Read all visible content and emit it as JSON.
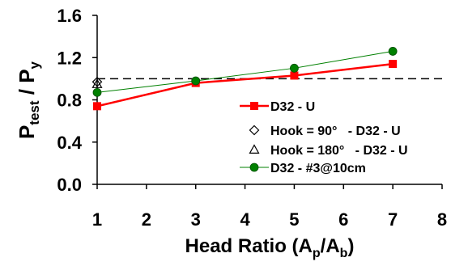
{
  "chart_data": {
    "type": "line",
    "xlabel": {
      "main": "Head Ratio (A",
      "sub1": "p",
      "mid": "/A",
      "sub2": "b",
      "end": ")"
    },
    "ylabel": {
      "main": "P",
      "sub1": "test",
      "mid": " / P",
      "sub2": "y"
    },
    "xlim": [
      1,
      8
    ],
    "ylim": [
      0,
      1.6
    ],
    "xticks": [
      1,
      2,
      3,
      4,
      5,
      6,
      7,
      8
    ],
    "xtick_labels": [
      "1",
      "2",
      "3",
      "4",
      "5",
      "6",
      "7",
      "8"
    ],
    "yticks": [
      0,
      0.4,
      0.8,
      1.2,
      1.6
    ],
    "ytick_labels": [
      "0.0",
      "0.4",
      "0.8",
      "1.2",
      "1.6"
    ],
    "reference_line": {
      "y": 1.0,
      "style": "dashed"
    },
    "grid": false,
    "legend_position": "lower-right",
    "series": [
      {
        "name": "D32 - U",
        "marker": "square",
        "color": "#ff0000",
        "line": true,
        "x": [
          1,
          3,
          5,
          7
        ],
        "y": [
          0.74,
          0.96,
          1.03,
          1.14
        ]
      },
      {
        "name": "Hook = 90°   - D32 - U",
        "marker": "diamond",
        "color": "#000000",
        "line": false,
        "x": [
          1
        ],
        "y": [
          0.97
        ]
      },
      {
        "name": "Hook = 180°   - D32 - U",
        "marker": "triangle",
        "color": "#000000",
        "line": false,
        "x": [
          1
        ],
        "y": [
          0.95
        ]
      },
      {
        "name": "D32 - #3@10cm",
        "marker": "circle",
        "color": "#008000",
        "line": true,
        "x": [
          1,
          3,
          5,
          7
        ],
        "y": [
          0.87,
          0.98,
          1.1,
          1.26
        ]
      }
    ]
  }
}
